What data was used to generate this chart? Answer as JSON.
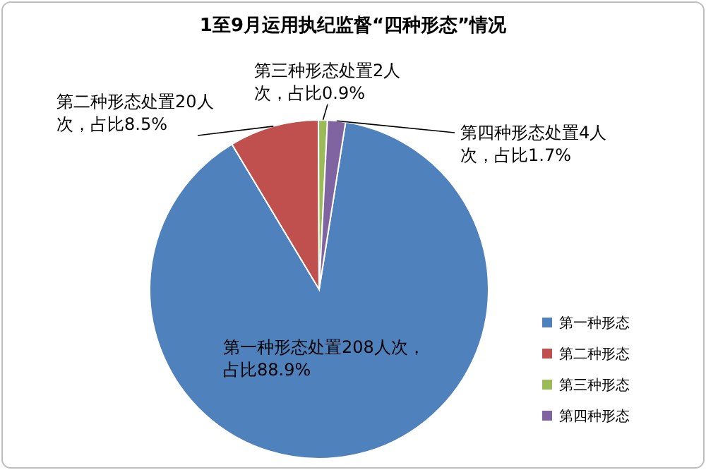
{
  "chart_data": {
    "type": "pie",
    "title": "1至9月运用执纪监督“四种形态”情况",
    "categories": [
      "第一种形态",
      "第二种形态",
      "第三种形态",
      "第四种形态"
    ],
    "values": [
      208,
      20,
      2,
      4
    ],
    "colors": [
      "#4f81bd",
      "#c0504d",
      "#9bbb59",
      "#8064a2"
    ],
    "value_labels": [
      "第一种形态处置208人次，占比88.9%",
      "第二种形态处置20人次，占比8.5%",
      "第三种形态处置2人次，占比0.9%",
      "第四种形态处置4人次，占比1.7%"
    ],
    "legend": "right"
  }
}
